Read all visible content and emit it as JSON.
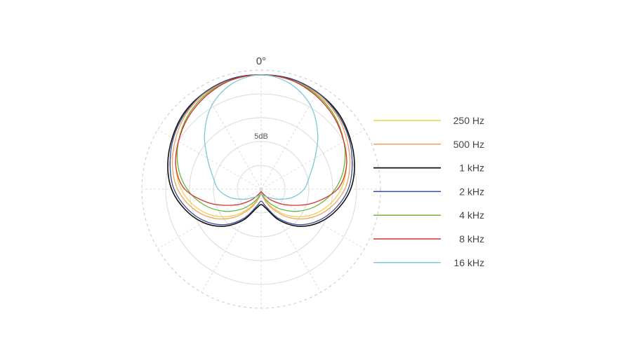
{
  "chart_data": {
    "type": "polar-line",
    "title": "",
    "angle_label": "0°",
    "ring_label": "5dB",
    "rings": 5,
    "spokes_every_deg": 30,
    "grid": true,
    "legend_position": "right",
    "angles_deg": [
      0,
      15,
      30,
      45,
      60,
      75,
      90,
      105,
      120,
      135,
      150,
      165,
      180
    ],
    "series": [
      {
        "name": "250 Hz",
        "color": "#f2d14a",
        "r": [
          0.96,
          0.95,
          0.92,
          0.87,
          0.8,
          0.74,
          0.67,
          0.57,
          0.45,
          0.31,
          0.17,
          0.07,
          0.04
        ]
      },
      {
        "name": "500 Hz",
        "color": "#f2a062",
        "r": [
          0.96,
          0.95,
          0.93,
          0.89,
          0.83,
          0.77,
          0.7,
          0.6,
          0.48,
          0.34,
          0.19,
          0.08,
          0.03
        ]
      },
      {
        "name": "1 kHz",
        "color": "#111111",
        "r": [
          0.96,
          0.96,
          0.94,
          0.91,
          0.86,
          0.81,
          0.75,
          0.66,
          0.56,
          0.44,
          0.3,
          0.17,
          0.13
        ]
      },
      {
        "name": "2 kHz",
        "color": "#3d4a8f",
        "r": [
          0.96,
          0.96,
          0.94,
          0.9,
          0.85,
          0.79,
          0.73,
          0.64,
          0.54,
          0.42,
          0.28,
          0.15,
          0.1
        ]
      },
      {
        "name": "4 kHz",
        "color": "#6db33f",
        "r": [
          0.96,
          0.95,
          0.92,
          0.87,
          0.8,
          0.72,
          0.62,
          0.5,
          0.37,
          0.24,
          0.13,
          0.06,
          0.04
        ]
      },
      {
        "name": "8 kHz",
        "color": "#d1332e",
        "r": [
          0.96,
          0.95,
          0.91,
          0.86,
          0.8,
          0.74,
          0.64,
          0.45,
          0.27,
          0.14,
          0.06,
          0.03,
          0.02
        ]
      },
      {
        "name": "16 kHz",
        "color": "#7ec8d6",
        "r": [
          0.96,
          0.92,
          0.82,
          0.67,
          0.52,
          0.42,
          0.36,
          0.27,
          0.17,
          0.1,
          0.07,
          0.05,
          0.04
        ]
      }
    ]
  }
}
